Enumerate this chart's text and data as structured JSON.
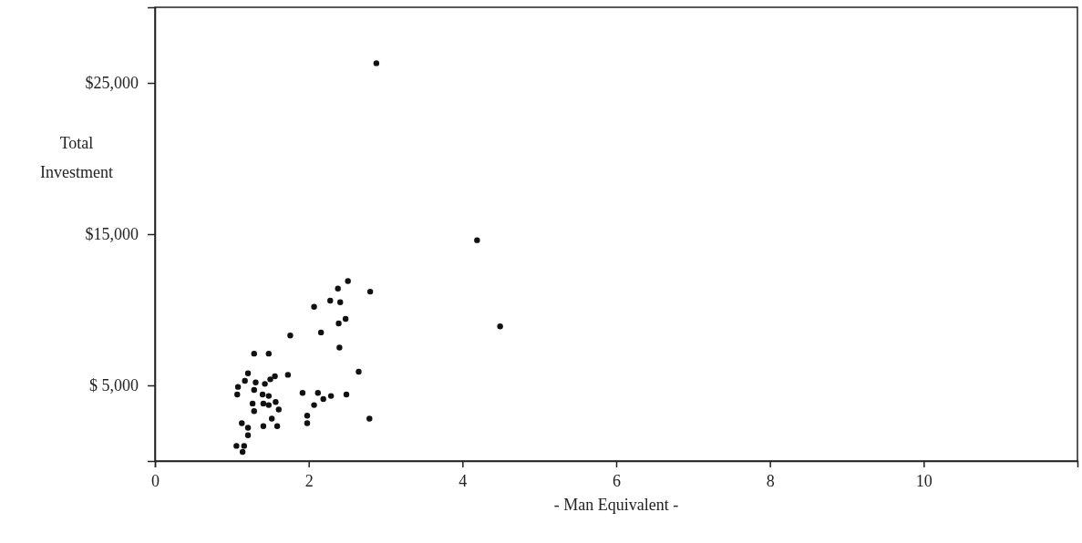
{
  "chart_data": {
    "type": "scatter",
    "xlabel": "- Man Equivalent -",
    "ylabel": "Total Investment",
    "xlim": [
      0,
      12
    ],
    "ylim": [
      0,
      30000
    ],
    "xticks": [
      0,
      2,
      4,
      6,
      8,
      10
    ],
    "yticks": [
      {
        "value": 5000,
        "label": "$ 5,000"
      },
      {
        "value": 15000,
        "label": "$15,000"
      },
      {
        "value": 25000,
        "label": "$25,000"
      }
    ],
    "grid": false,
    "marker": "circle",
    "x": [
      2.51,
      2.38,
      2.8,
      2.28,
      2.41,
      2.07,
      2.48,
      2.39,
      1.76,
      2.16,
      2.4,
      1.29,
      1.48,
      2.65,
      1.21,
      1.73,
      1.56,
      1.5,
      1.17,
      1.31,
      1.43,
      1.08,
      1.07,
      1.29,
      1.4,
      1.48,
      1.92,
      2.12,
      2.29,
      2.49,
      2.19,
      1.57,
      1.27,
      1.41,
      1.48,
      2.07,
      1.61,
      1.29,
      1.52,
      1.98,
      1.98,
      2.79,
      1.13,
      1.41,
      1.59,
      1.21,
      1.21,
      1.06,
      1.16,
      1.14,
      2.88,
      4.19,
      4.49
    ],
    "series": [
      {
        "color": "#111111",
        "values": [
          11900,
          11400,
          11200,
          10600,
          10500,
          10200,
          9400,
          9100,
          8300,
          8500,
          7500,
          7100,
          7100,
          5900,
          5800,
          5700,
          5600,
          5400,
          5300,
          5200,
          5100,
          4900,
          4400,
          4700,
          4400,
          4300,
          4500,
          4500,
          4300,
          4400,
          4100,
          3900,
          3800,
          3800,
          3700,
          3700,
          3400,
          3300,
          2800,
          3000,
          2500,
          2800,
          2500,
          2300,
          2300,
          2200,
          1700,
          1000,
          1000,
          600,
          26300,
          14600,
          8900
        ]
      }
    ]
  }
}
